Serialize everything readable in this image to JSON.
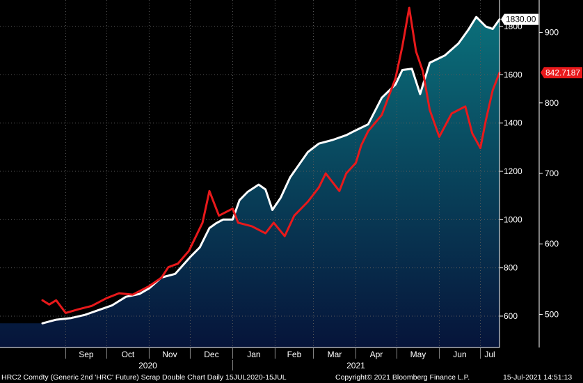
{
  "chart_data": {
    "type": "line",
    "title": "",
    "x_range": [
      "2020-07-15",
      "2021-07-15"
    ],
    "x_month_labels": [
      "Sep",
      "Oct",
      "Nov",
      "Dec",
      "Jan",
      "Feb",
      "Mar",
      "Apr",
      "May",
      "Jun",
      "Jul"
    ],
    "x_year_labels": [
      "2020",
      "2021"
    ],
    "grid": true,
    "left_axis": {
      "ticks": [
        600,
        800,
        1000,
        1200,
        1400,
        1600,
        1800
      ],
      "range": [
        470,
        1910
      ]
    },
    "right_axis": {
      "ticks": [
        500,
        600,
        700,
        800,
        900
      ],
      "range": [
        453,
        946
      ]
    },
    "series": [
      {
        "name": "HRC2 Comdty (Generic 2nd 'HRC' Future)",
        "color": "#ffffff",
        "axis": "left",
        "fill": true,
        "last_value_label": "1830.00",
        "points": [
          [
            "2020-08-15",
            570
          ],
          [
            "2020-08-25",
            585
          ],
          [
            "2020-09-05",
            592
          ],
          [
            "2020-09-15",
            605
          ],
          [
            "2020-09-25",
            625
          ],
          [
            "2020-10-05",
            645
          ],
          [
            "2020-10-15",
            680
          ],
          [
            "2020-10-25",
            692
          ],
          [
            "2020-11-01",
            715
          ],
          [
            "2020-11-10",
            760
          ],
          [
            "2020-11-20",
            775
          ],
          [
            "2020-12-01",
            845
          ],
          [
            "2020-12-08",
            885
          ],
          [
            "2020-12-15",
            965
          ],
          [
            "2020-12-20",
            985
          ],
          [
            "2020-12-25",
            1000
          ],
          [
            "2021-01-01",
            1000
          ],
          [
            "2021-01-06",
            1080
          ],
          [
            "2021-01-12",
            1115
          ],
          [
            "2021-01-20",
            1145
          ],
          [
            "2021-01-25",
            1125
          ],
          [
            "2021-01-30",
            1040
          ],
          [
            "2021-02-05",
            1090
          ],
          [
            "2021-02-12",
            1175
          ],
          [
            "2021-02-20",
            1240
          ],
          [
            "2021-02-25",
            1280
          ],
          [
            "2021-03-05",
            1315
          ],
          [
            "2021-03-15",
            1330
          ],
          [
            "2021-03-25",
            1350
          ],
          [
            "2021-04-01",
            1370
          ],
          [
            "2021-04-10",
            1395
          ],
          [
            "2021-04-20",
            1505
          ],
          [
            "2021-04-30",
            1560
          ],
          [
            "2021-05-05",
            1620
          ],
          [
            "2021-05-12",
            1625
          ],
          [
            "2021-05-18",
            1520
          ],
          [
            "2021-05-25",
            1650
          ],
          [
            "2021-06-05",
            1680
          ],
          [
            "2021-06-15",
            1730
          ],
          [
            "2021-06-22",
            1785
          ],
          [
            "2021-06-28",
            1840
          ],
          [
            "2021-07-05",
            1800
          ],
          [
            "2021-07-10",
            1790
          ],
          [
            "2021-07-15",
            1830
          ]
        ]
      },
      {
        "name": "Scrap",
        "color": "#e8191b",
        "axis": "right",
        "fill": false,
        "last_value_label": "842.7187",
        "points": [
          [
            "2020-08-15",
            520
          ],
          [
            "2020-08-20",
            514
          ],
          [
            "2020-08-25",
            520
          ],
          [
            "2020-09-01",
            502
          ],
          [
            "2020-09-10",
            507
          ],
          [
            "2020-09-20",
            512
          ],
          [
            "2020-10-01",
            523
          ],
          [
            "2020-10-10",
            530
          ],
          [
            "2020-10-20",
            528
          ],
          [
            "2020-11-01",
            540
          ],
          [
            "2020-11-10",
            552
          ],
          [
            "2020-11-15",
            567
          ],
          [
            "2020-11-22",
            572
          ],
          [
            "2020-11-30",
            590
          ],
          [
            "2020-12-10",
            630
          ],
          [
            "2020-12-15",
            675
          ],
          [
            "2020-12-22",
            640
          ],
          [
            "2021-01-01",
            650
          ],
          [
            "2021-01-05",
            630
          ],
          [
            "2021-01-15",
            625
          ],
          [
            "2021-01-25",
            615
          ],
          [
            "2021-01-31",
            630
          ],
          [
            "2021-02-08",
            611
          ],
          [
            "2021-02-15",
            640
          ],
          [
            "2021-02-25",
            660
          ],
          [
            "2021-03-05",
            680
          ],
          [
            "2021-03-10",
            700
          ],
          [
            "2021-03-20",
            675
          ],
          [
            "2021-03-25",
            700
          ],
          [
            "2021-04-01",
            715
          ],
          [
            "2021-04-05",
            740
          ],
          [
            "2021-04-10",
            760
          ],
          [
            "2021-04-20",
            783
          ],
          [
            "2021-04-30",
            835
          ],
          [
            "2021-05-05",
            880
          ],
          [
            "2021-05-10",
            935
          ],
          [
            "2021-05-15",
            873
          ],
          [
            "2021-05-20",
            845
          ],
          [
            "2021-05-25",
            790
          ],
          [
            "2021-06-01",
            752
          ],
          [
            "2021-06-10",
            785
          ],
          [
            "2021-06-20",
            795
          ],
          [
            "2021-06-25",
            757
          ],
          [
            "2021-07-01",
            736
          ],
          [
            "2021-07-05",
            775
          ],
          [
            "2021-07-10",
            818
          ],
          [
            "2021-07-15",
            843
          ]
        ]
      }
    ]
  },
  "footer": {
    "description": "HRC2 Comdty (Generic 2nd 'HRC' Future) Scrap Double Chart  Daily 15JUL2020-15JUL",
    "copyright": "Copyright© 2021 Bloomberg Finance L.P.",
    "timestamp": "15-Jul-2021 14:51:13"
  },
  "colors": {
    "background": "#000000",
    "area_top": "#0b6f7a",
    "area_bottom": "#06143a",
    "grid": "#5a5a5a"
  }
}
